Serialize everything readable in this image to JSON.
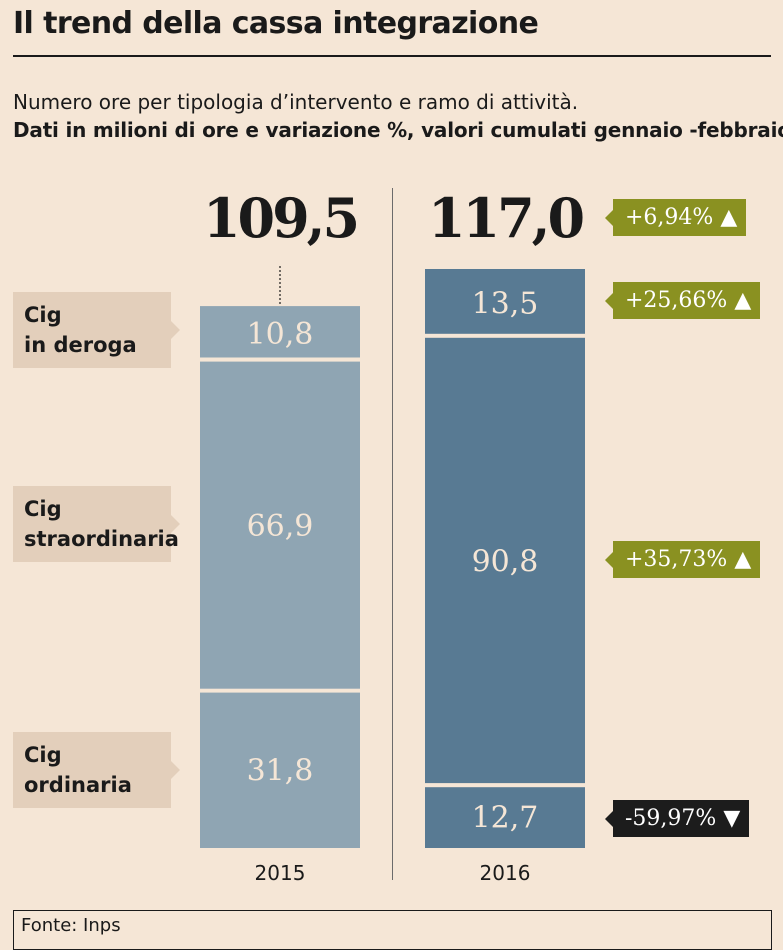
{
  "title": "Il trend della cassa integrazione",
  "subtitle": "Numero ore per tipologia d’intervento e ramo di attività.",
  "subtitle_bold": "Dati in milioni di ore e variazione %, valori cumulati gennaio -febbraio",
  "source": "Fonte: Inps",
  "colors": {
    "background": "#f5e6d6",
    "bar_2015": "#8fa5b3",
    "bar_2016": "#587a93",
    "badge_up": "#8a9121",
    "badge_down": "#1c1c1c",
    "category_label_bg": "#e3cfbb"
  },
  "categories": {
    "deroga": "Cig\nin deroga",
    "straordinaria": "Cig\nstraordinaria",
    "ordinaria": "Cig\nordinaria"
  },
  "changes": {
    "total": "+6,94% ▲",
    "deroga": "+25,66% ▲",
    "straordinaria": "+35,73% ▲",
    "ordinaria": "-59,97% ▼"
  },
  "chart_data": {
    "type": "bar",
    "stacked": true,
    "categories": [
      "2015",
      "2016"
    ],
    "totals": [
      "109,5",
      "117,0"
    ],
    "series": [
      {
        "name": "Cig ordinaria",
        "values": [
          31.8,
          12.7
        ],
        "labels": [
          "31,8",
          "12,7"
        ]
      },
      {
        "name": "Cig straordinaria",
        "values": [
          66.9,
          90.8
        ],
        "labels": [
          "66,9",
          "90,8"
        ]
      },
      {
        "name": "Cig in deroga",
        "values": [
          10.8,
          13.5
        ],
        "labels": [
          "10,8",
          "13,5"
        ]
      }
    ],
    "changes": [
      "-59,97% ▼",
      "+35,73% ▲",
      "+25,66% ▲"
    ],
    "total_change": "+6,94% ▲",
    "units": "milioni di ore"
  }
}
